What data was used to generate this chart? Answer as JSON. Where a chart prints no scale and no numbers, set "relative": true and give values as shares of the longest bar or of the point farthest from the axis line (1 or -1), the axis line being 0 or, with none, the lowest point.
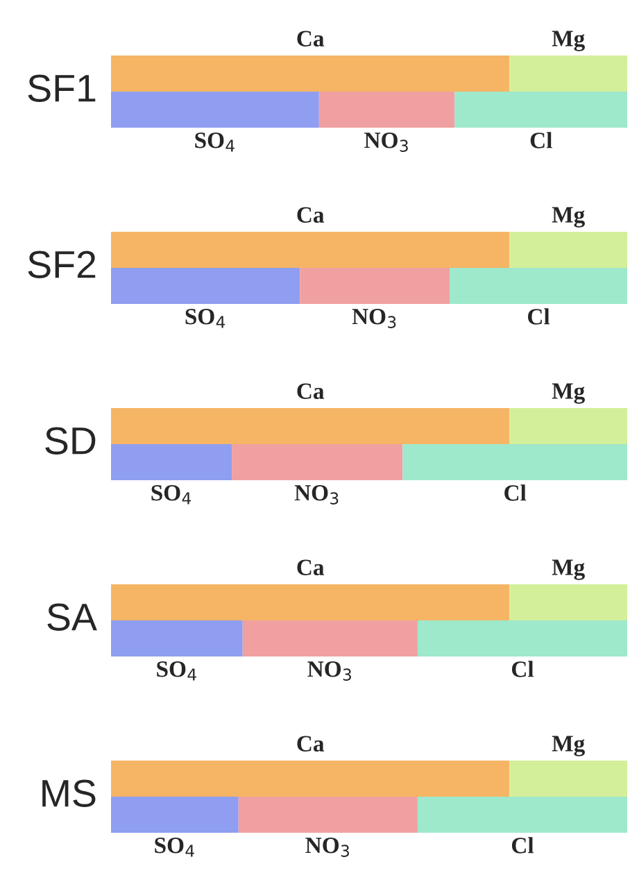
{
  "chart_data": [
    {
      "type": "bar",
      "title": "SF1",
      "orientation": "horizontal",
      "stacked": true,
      "relative": true,
      "categories": [
        null
      ],
      "series": [
        {
          "name": "Ca",
          "color": "#f5b565",
          "values": [
            0.772
          ]
        },
        {
          "name": "Mg",
          "color": "#d4ef9a",
          "values": [
            0.228
          ]
        }
      ]
    },
    {
      "type": "bar",
      "orientation": "horizontal",
      "stacked": true,
      "relative": true,
      "categories": [
        null
      ],
      "series": [
        {
          "name": "SO$_{4}$",
          "color": "#8f9ef0",
          "values": [
            0.403
          ]
        },
        {
          "name": "NO$_{3}$",
          "color": "#f0a0a0",
          "values": [
            0.263
          ]
        },
        {
          "name": "Cl",
          "color": "#9ee8cc",
          "values": [
            0.334
          ]
        }
      ]
    },
    {
      "type": "bar",
      "title": "SF2",
      "orientation": "horizontal",
      "stacked": true,
      "relative": true,
      "categories": [
        null
      ],
      "series": [
        {
          "name": "Ca",
          "color": "#f5b565",
          "values": [
            0.772
          ]
        },
        {
          "name": "Mg",
          "color": "#d4ef9a",
          "values": [
            0.228
          ]
        }
      ]
    },
    {
      "type": "bar",
      "orientation": "horizontal",
      "stacked": true,
      "relative": true,
      "categories": [
        null
      ],
      "series": [
        {
          "name": "SO$_{4}$",
          "color": "#8f9ef0",
          "values": [
            0.366
          ]
        },
        {
          "name": "NO$_{3}$",
          "color": "#f0a0a0",
          "values": [
            0.29
          ]
        },
        {
          "name": "Cl",
          "color": "#9ee8cc",
          "values": [
            0.344
          ]
        }
      ]
    },
    {
      "type": "bar",
      "title": "SD",
      "orientation": "horizontal",
      "stacked": true,
      "relative": true,
      "categories": [
        null
      ],
      "series": [
        {
          "name": "Ca",
          "color": "#f5b565",
          "values": [
            0.772
          ]
        },
        {
          "name": "Mg",
          "color": "#d4ef9a",
          "values": [
            0.228
          ]
        }
      ]
    },
    {
      "type": "bar",
      "orientation": "horizontal",
      "stacked": true,
      "relative": true,
      "categories": [
        null
      ],
      "series": [
        {
          "name": "SO$_{4}$",
          "color": "#8f9ef0",
          "values": [
            0.234
          ]
        },
        {
          "name": "NO$_{3}$",
          "color": "#f0a0a0",
          "values": [
            0.331
          ]
        },
        {
          "name": "Cl",
          "color": "#9ee8cc",
          "values": [
            0.435
          ]
        }
      ]
    },
    {
      "type": "bar",
      "title": "SA",
      "orientation": "horizontal",
      "stacked": true,
      "relative": true,
      "categories": [
        null
      ],
      "series": [
        {
          "name": "Ca",
          "color": "#f5b565",
          "values": [
            0.772
          ]
        },
        {
          "name": "Mg",
          "color": "#d4ef9a",
          "values": [
            0.228
          ]
        }
      ]
    },
    {
      "type": "bar",
      "orientation": "horizontal",
      "stacked": true,
      "relative": true,
      "categories": [
        null
      ],
      "series": [
        {
          "name": "SO$_{4}$",
          "color": "#8f9ef0",
          "values": [
            0.255
          ]
        },
        {
          "name": "NO$_{3}$",
          "color": "#f0a0a0",
          "values": [
            0.339
          ]
        },
        {
          "name": "Cl",
          "color": "#9ee8cc",
          "values": [
            0.406
          ]
        }
      ]
    },
    {
      "type": "bar",
      "title": "MS",
      "orientation": "horizontal",
      "stacked": true,
      "relative": true,
      "categories": [
        null
      ],
      "series": [
        {
          "name": "Ca",
          "color": "#f5b565",
          "values": [
            0.772
          ]
        },
        {
          "name": "Mg",
          "color": "#d4ef9a",
          "values": [
            0.228
          ]
        }
      ]
    },
    {
      "type": "bar",
      "orientation": "horizontal",
      "stacked": true,
      "relative": true,
      "categories": [
        null
      ],
      "series": [
        {
          "name": "SO$_{4}$",
          "color": "#8f9ef0",
          "values": [
            0.247
          ]
        },
        {
          "name": "NO$_{3}$",
          "color": "#f0a0a0",
          "values": [
            0.347
          ]
        },
        {
          "name": "Cl",
          "color": "#9ee8cc",
          "values": [
            0.406
          ]
        }
      ]
    }
  ]
}
